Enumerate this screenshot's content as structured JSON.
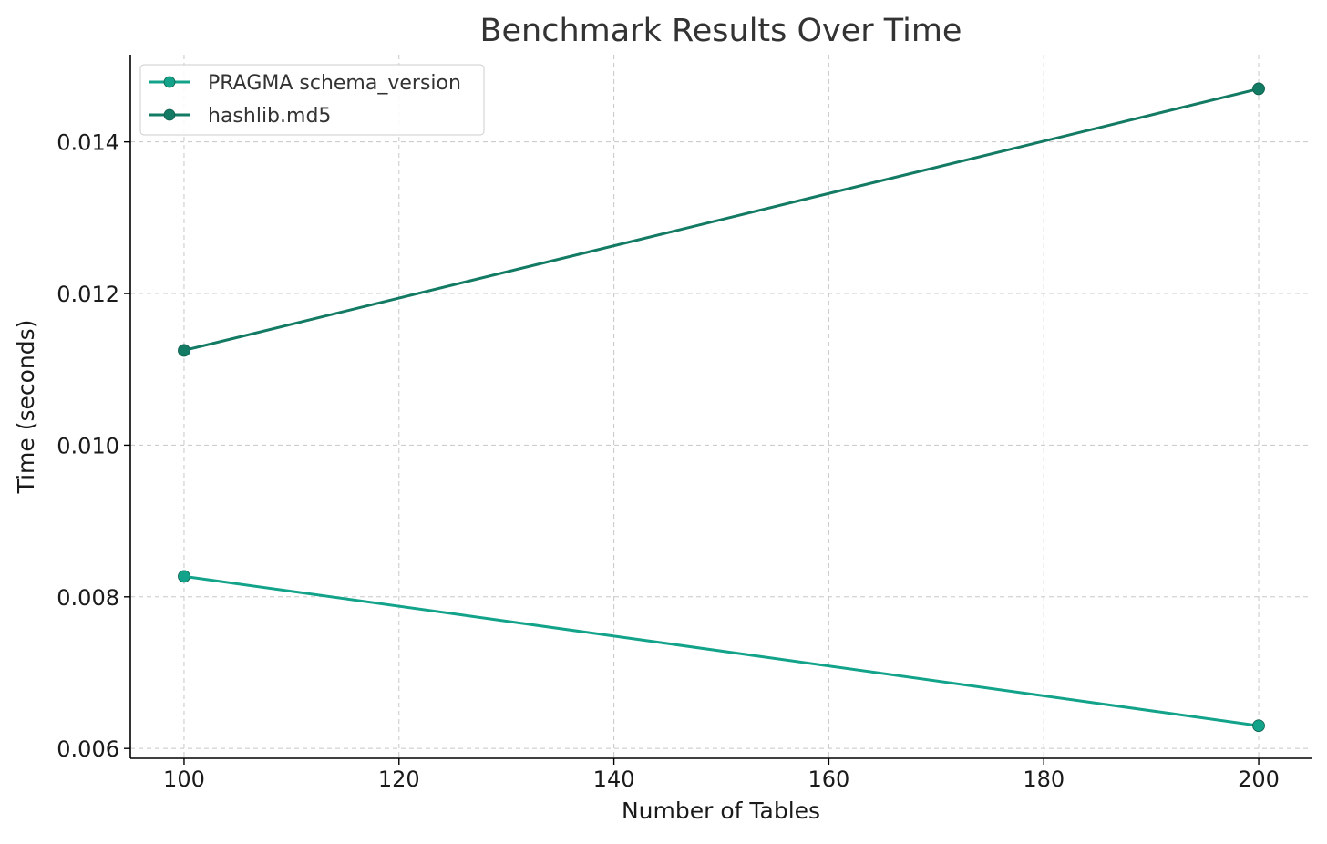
{
  "chart_data": {
    "type": "line",
    "title": "Benchmark Results Over Time",
    "xlabel": "Number of Tables",
    "ylabel": "Time (seconds)",
    "x": [
      100,
      200
    ],
    "xticks": [
      100,
      120,
      140,
      160,
      180,
      200
    ],
    "yticks": [
      0.006,
      0.008,
      0.01,
      0.012,
      0.014
    ],
    "ytick_labels": [
      "0.006",
      "0.008",
      "0.010",
      "0.012",
      "0.014"
    ],
    "xlim": [
      95,
      205
    ],
    "ylim": [
      0.00587,
      0.01515
    ],
    "grid": true,
    "legend_position": "top-left",
    "series": [
      {
        "name": "PRAGMA schema_version",
        "values": [
          0.00827,
          0.0063
        ],
        "color": "#12a38a"
      },
      {
        "name": "hashlib.md5",
        "values": [
          0.01125,
          0.0147
        ],
        "color": "#137a63"
      }
    ]
  }
}
